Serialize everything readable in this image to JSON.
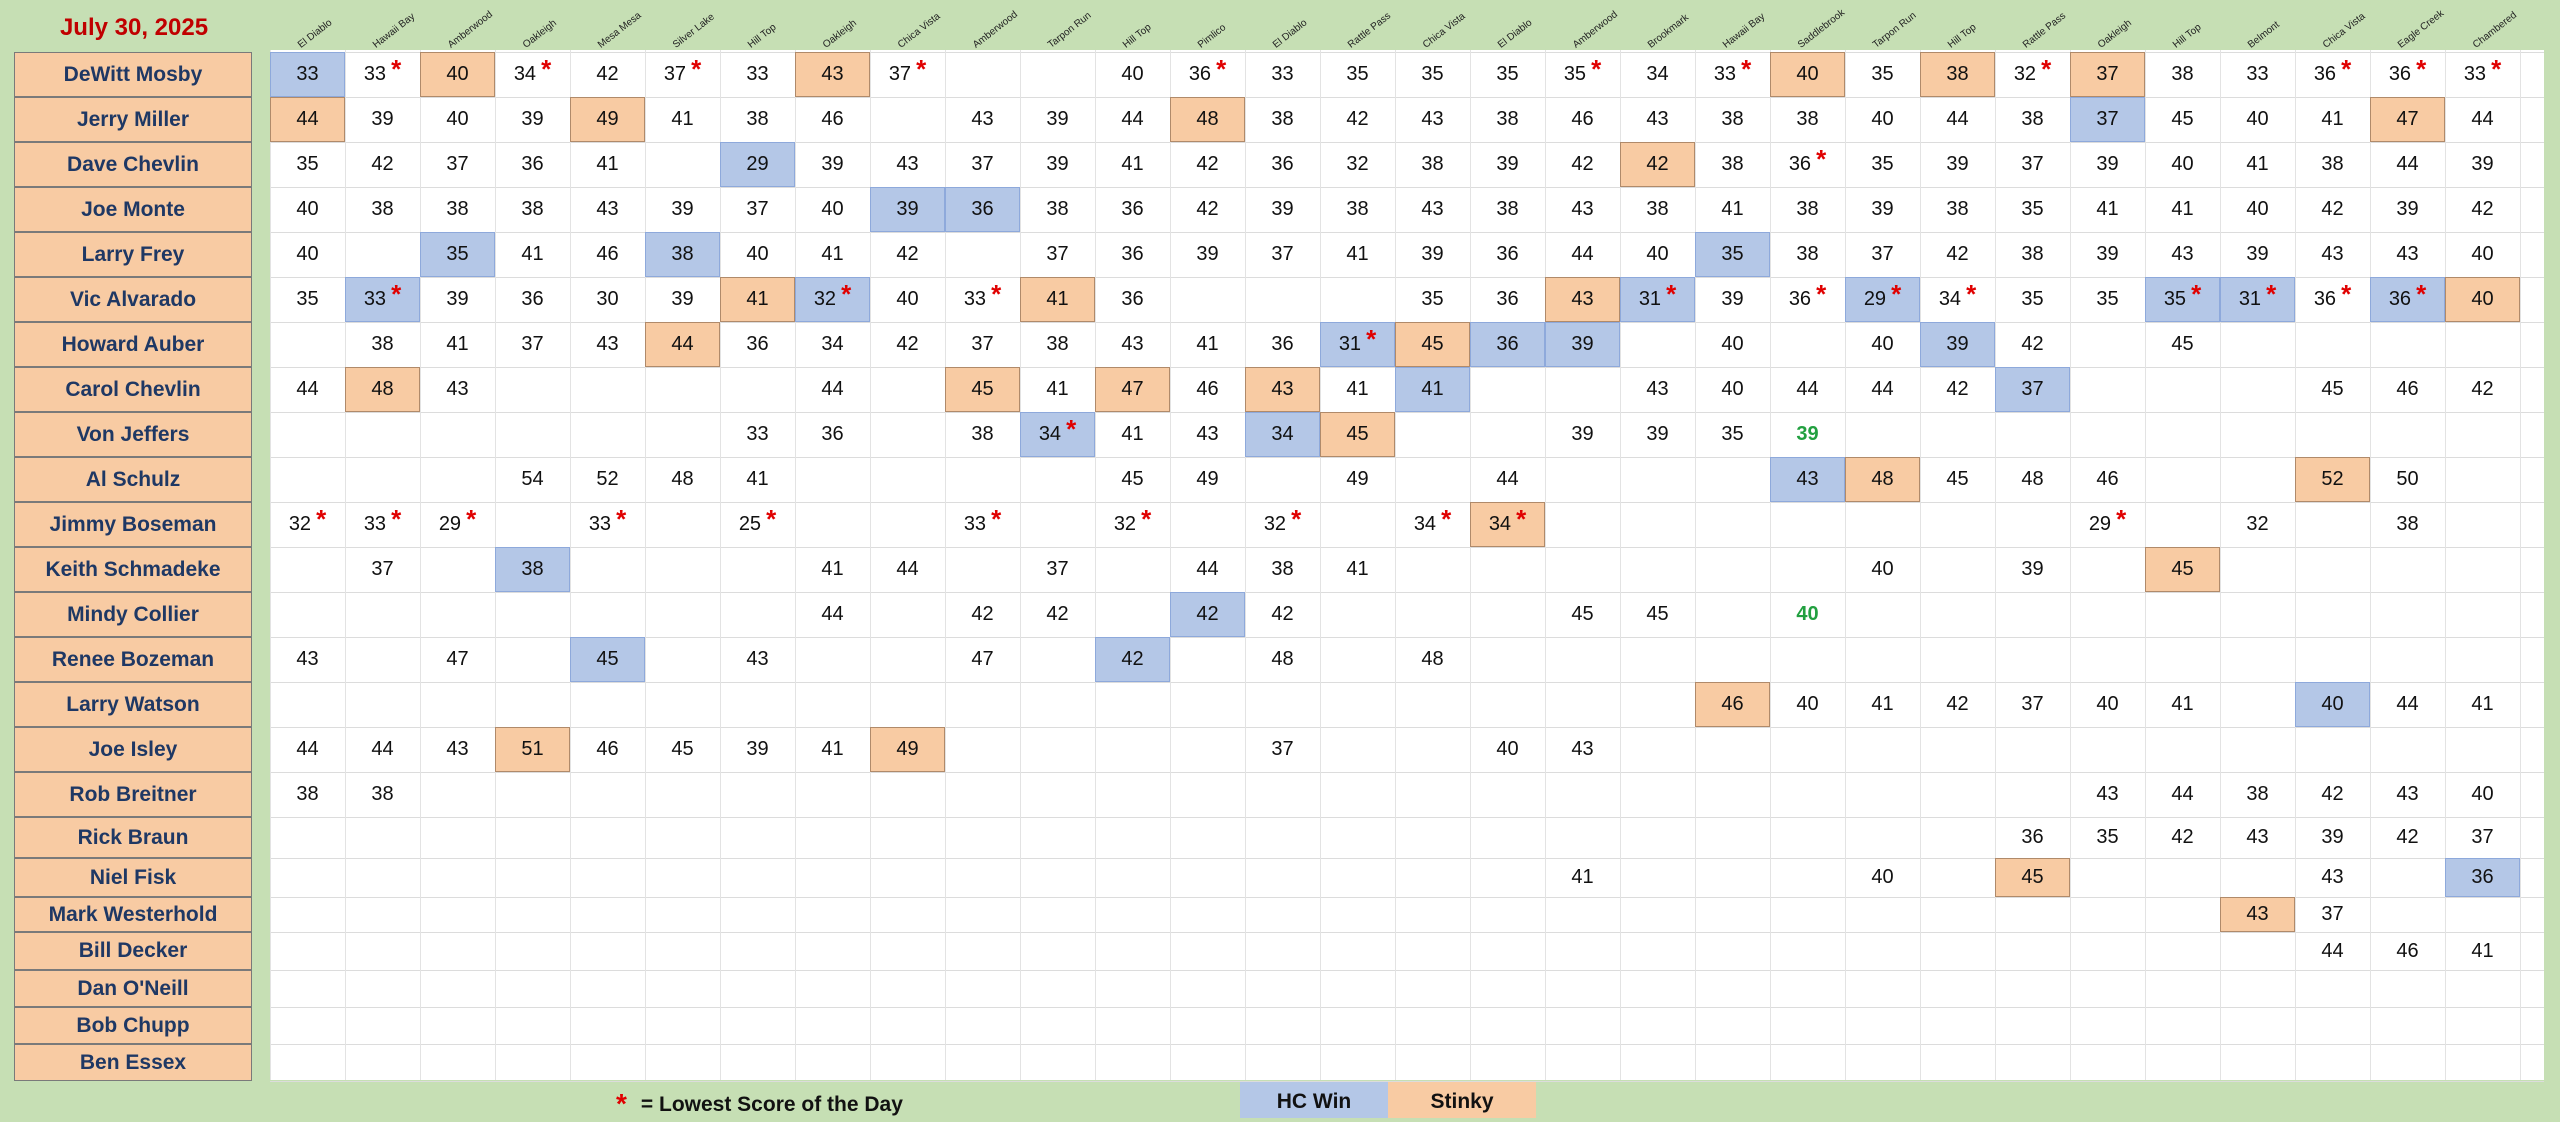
{
  "date": "July 30, 2025",
  "courses": [
    "El Diablo",
    "Hawaii Bay",
    "Amberwood",
    "Oakleigh",
    "Mesa Mesa",
    "Silver Lake",
    "Hill Top",
    "Oakleigh",
    "Chica Vista",
    "Amberwood",
    "Tarpon Run",
    "Hill Top",
    "Pimlico",
    "El Diablo",
    "Rattle Pass",
    "Chica Vista",
    "El Diablo",
    "Amberwood",
    "Brookmark",
    "Hawaii Bay",
    "Saddlebrook",
    "Tarpon Run",
    "Hill Top",
    "Rattle Pass",
    "Oakleigh",
    "Hill Top",
    "Belmont",
    "Chica Vista",
    "Eagle Creek",
    "Chambered"
  ],
  "players": [
    {
      "name": "DeWitt Mosby",
      "scores": [
        "33h",
        "33*",
        "40s",
        "34*",
        "42",
        "37*",
        "33",
        "43s",
        "37*",
        "",
        "",
        "40",
        "36*",
        "33",
        "35",
        "35",
        "35",
        "35*",
        "34",
        "33*",
        "40s",
        "35",
        "38s",
        "32*",
        "37s",
        "38",
        "33",
        "36*",
        "36*",
        "33*"
      ]
    },
    {
      "name": "Jerry Miller",
      "scores": [
        "44s",
        "39",
        "40",
        "39",
        "49s",
        "41",
        "38",
        "46",
        "",
        "43",
        "39",
        "44",
        "48s",
        "38",
        "42",
        "43",
        "38",
        "46",
        "43",
        "38",
        "38",
        "40",
        "44",
        "38",
        "37h",
        "45",
        "40",
        "41",
        "47s",
        "44"
      ]
    },
    {
      "name": "Dave Chevlin",
      "scores": [
        "35",
        "42",
        "37",
        "36",
        "41",
        "",
        "29h",
        "39",
        "43",
        "37",
        "39",
        "41",
        "42",
        "36",
        "32",
        "38",
        "39",
        "42",
        "42s",
        "38",
        "36*",
        "35",
        "39",
        "37",
        "39",
        "40",
        "41",
        "38",
        "44",
        "39"
      ]
    },
    {
      "name": "Joe Monte",
      "scores": [
        "40",
        "38",
        "38",
        "38",
        "43",
        "39",
        "37",
        "40",
        "39h",
        "36h",
        "38",
        "36",
        "42",
        "39",
        "38",
        "43",
        "38",
        "43",
        "38",
        "41",
        "38",
        "39",
        "38",
        "35",
        "41",
        "41",
        "40",
        "42",
        "39",
        "42"
      ]
    },
    {
      "name": "Larry Frey",
      "scores": [
        "40",
        "",
        "35h",
        "41",
        "46",
        "38h",
        "40",
        "41",
        "42",
        "",
        "37",
        "36",
        "39",
        "37",
        "41",
        "39",
        "36",
        "44",
        "40",
        "35h",
        "38",
        "37",
        "42",
        "38",
        "39",
        "43",
        "39",
        "43",
        "43",
        "40"
      ]
    },
    {
      "name": "Vic Alvarado",
      "scores": [
        "35",
        "33h*",
        "39",
        "36",
        "30",
        "39",
        "41s",
        "32h*",
        "40",
        "33*",
        "41s",
        "36",
        "",
        "",
        "",
        "35",
        "36",
        "43s",
        "31h*",
        "39",
        "36*",
        "29h*",
        "34*",
        "35",
        "35",
        "35h*",
        "31h*",
        "36*",
        "36h*",
        "40s"
      ]
    },
    {
      "name": "Howard Auber",
      "scores": [
        "",
        "38",
        "41",
        "37",
        "43",
        "44s",
        "36",
        "34",
        "42",
        "37",
        "38",
        "43",
        "41",
        "36",
        "31h*",
        "45s",
        "36h",
        "39h",
        "",
        "40",
        "",
        "40",
        "39h",
        "42",
        "",
        "45",
        "",
        "",
        "",
        ""
      ]
    },
    {
      "name": "Carol Chevlin",
      "scores": [
        "44",
        "48s",
        "43",
        "",
        "",
        "",
        "",
        "44",
        "",
        "45s",
        "41",
        "47s",
        "46",
        "43s",
        "41",
        "41h",
        "",
        "",
        "43",
        "40",
        "44",
        "44",
        "42",
        "37h",
        "",
        "",
        "",
        "45",
        "46",
        "42"
      ]
    },
    {
      "name": "Von Jeffers",
      "scores": [
        "",
        "",
        "",
        "",
        "",
        "",
        "33",
        "36",
        "",
        "38",
        "34h*",
        "41",
        "43",
        "34h",
        "45s",
        "",
        "",
        "39",
        "39",
        "35",
        "39g",
        "",
        "",
        "",
        "",
        "",
        "",
        "",
        "",
        ""
      ]
    },
    {
      "name": "Al Schulz",
      "scores": [
        "",
        "",
        "",
        "54",
        "52",
        "48",
        "41",
        "",
        "",
        "",
        "",
        "45",
        "49",
        "",
        "49",
        "",
        "44",
        "",
        "",
        "",
        "43h",
        "48s",
        "45",
        "48",
        "46",
        "",
        "",
        "52s",
        "50",
        ""
      ]
    },
    {
      "name": "Jimmy Boseman",
      "scores": [
        "32*",
        "33*",
        "29*",
        "",
        "33*",
        "",
        "25*",
        "",
        "",
        "33*",
        "",
        "32*",
        "",
        "32*",
        "",
        "34*",
        "34s*",
        "",
        "",
        "",
        "",
        "",
        "",
        "",
        "29*",
        "",
        "32",
        "",
        "38",
        ""
      ]
    },
    {
      "name": "Keith Schmadeke",
      "scores": [
        "",
        "37",
        "",
        "38h",
        "",
        "",
        "",
        "41",
        "44",
        "",
        "37",
        "",
        "44",
        "38",
        "41",
        "",
        "",
        "",
        "",
        "",
        "",
        "40",
        "",
        "39",
        "",
        "45s",
        "",
        "",
        "",
        ""
      ]
    },
    {
      "name": "Mindy Collier",
      "scores": [
        "",
        "",
        "",
        "",
        "",
        "",
        "",
        "44",
        "",
        "42",
        "42",
        "",
        "42h",
        "42",
        "",
        "",
        "",
        "45",
        "45",
        "",
        "40g",
        "",
        "",
        "",
        "",
        "",
        "",
        "",
        "",
        ""
      ]
    },
    {
      "name": "Renee Bozeman",
      "scores": [
        "43",
        "",
        "47",
        "",
        "45h",
        "",
        "43",
        "",
        "",
        "47",
        "",
        "42h",
        "",
        "48",
        "",
        "48",
        "",
        "",
        "",
        "",
        "",
        "",
        "",
        "",
        "",
        "",
        "",
        "",
        "",
        ""
      ]
    },
    {
      "name": "Larry Watson",
      "scores": [
        "",
        "",
        "",
        "",
        "",
        "",
        "",
        "",
        "",
        "",
        "",
        "",
        "",
        "",
        "",
        "",
        "",
        "",
        "",
        "46s",
        "40",
        "41",
        "42",
        "37",
        "40",
        "41",
        "",
        "40h",
        "44",
        "41"
      ]
    },
    {
      "name": "Joe Isley",
      "scores": [
        "44",
        "44",
        "43",
        "51s",
        "46",
        "45",
        "39",
        "41",
        "49s",
        "",
        "",
        "",
        "",
        "37",
        "",
        "",
        "40",
        "43",
        "",
        "",
        "",
        "",
        "",
        "",
        "",
        "",
        "",
        "",
        "",
        ""
      ]
    },
    {
      "name": "Rob Breitner",
      "scores": [
        "38",
        "38",
        "",
        "",
        "",
        "",
        "",
        "",
        "",
        "",
        "",
        "",
        "",
        "",
        "",
        "",
        "",
        "",
        "",
        "",
        "",
        "",
        "",
        "",
        "43",
        "44",
        "38",
        "42",
        "43",
        "40"
      ]
    },
    {
      "name": "Rick Braun",
      "scores": [
        "",
        "",
        "",
        "",
        "",
        "",
        "",
        "",
        "",
        "",
        "",
        "",
        "",
        "",
        "",
        "",
        "",
        "",
        "",
        "",
        "",
        "",
        "",
        "36",
        "35",
        "42",
        "43",
        "39",
        "42",
        "37"
      ]
    },
    {
      "name": "Niel Fisk",
      "scores": [
        "",
        "",
        "",
        "",
        "",
        "",
        "",
        "",
        "",
        "",
        "",
        "",
        "",
        "",
        "",
        "",
        "",
        "41",
        "",
        "",
        "",
        "40",
        "",
        "45s",
        "",
        "",
        "",
        "43",
        "",
        "36h"
      ]
    },
    {
      "name": "Mark Westerhold",
      "scores": [
        "",
        "",
        "",
        "",
        "",
        "",
        "",
        "",
        "",
        "",
        "",
        "",
        "",
        "",
        "",
        "",
        "",
        "",
        "",
        "",
        "",
        "",
        "",
        "",
        "",
        "",
        "43s",
        "37",
        "",
        ""
      ]
    },
    {
      "name": "Bill Decker",
      "scores": [
        "",
        "",
        "",
        "",
        "",
        "",
        "",
        "",
        "",
        "",
        "",
        "",
        "",
        "",
        "",
        "",
        "",
        "",
        "",
        "",
        "",
        "",
        "",
        "",
        "",
        "",
        "",
        "44",
        "46",
        "41"
      ]
    },
    {
      "name": "Dan O'Neill",
      "scores": [
        "",
        "",
        "",
        "",
        "",
        "",
        "",
        "",
        "",
        "",
        "",
        "",
        "",
        "",
        "",
        "",
        "",
        "",
        "",
        "",
        "",
        "",
        "",
        "",
        "",
        "",
        "",
        "",
        "",
        ""
      ]
    },
    {
      "name": "Bob Chupp",
      "scores": [
        "",
        "",
        "",
        "",
        "",
        "",
        "",
        "",
        "",
        "",
        "",
        "",
        "",
        "",
        "",
        "",
        "",
        "",
        "",
        "",
        "",
        "",
        "",
        "",
        "",
        "",
        "",
        "",
        "",
        ""
      ]
    },
    {
      "name": "Ben Essex",
      "scores": [
        "",
        "",
        "",
        "",
        "",
        "",
        "",
        "",
        "",
        "",
        "",
        "",
        "",
        "",
        "",
        "",
        "",
        "",
        "",
        "",
        "",
        "",
        "",
        "",
        "",
        "",
        "",
        "",
        "",
        ""
      ]
    }
  ],
  "legend": {
    "star_symbol": "*",
    "star_text": "= Lowest Score of the Day",
    "hc_label": "HC Win",
    "stinky_label": "Stinky"
  },
  "colors": {
    "hc_win": "#b4c7e7",
    "stinky": "#f8cba3",
    "star": "#e00000",
    "date": "#c00000",
    "background": "#c6dfb4"
  }
}
